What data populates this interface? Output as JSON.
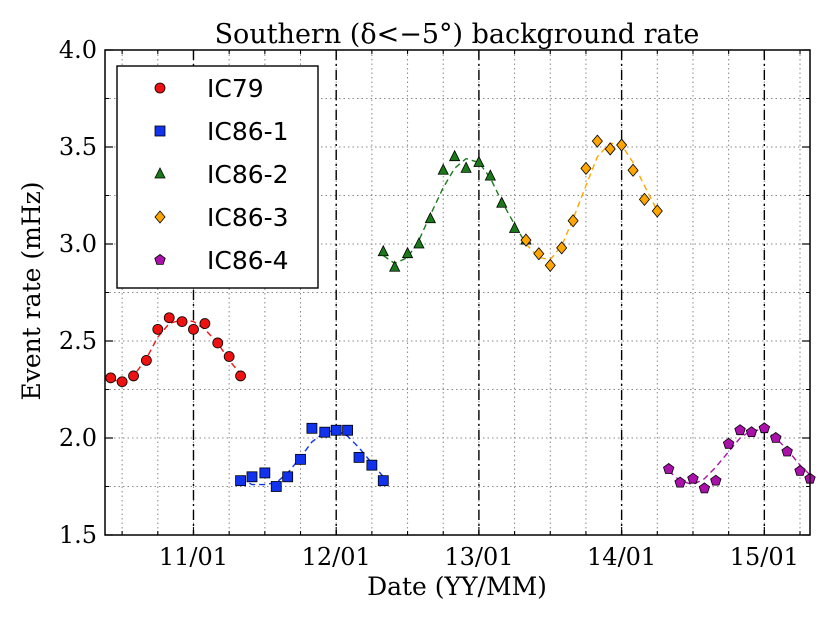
{
  "chart_data": {
    "type": "scatter",
    "title": "Southern (δ<−5°) background rate",
    "xlabel": "Date (YY/MM)",
    "ylabel": "Event rate (mHz)",
    "xlim": [
      2010.38,
      2015.32
    ],
    "ylim": [
      1.5,
      4.0
    ],
    "grid": true,
    "legend_position": "top-left",
    "x_tick_values": [
      2011.0,
      2012.0,
      2013.0,
      2014.0,
      2015.0
    ],
    "x_tick_labels": [
      "11/01",
      "12/01",
      "13/01",
      "14/01",
      "15/01"
    ],
    "y_tick_values": [
      1.5,
      2.0,
      2.5,
      3.0,
      3.5,
      4.0
    ],
    "y_tick_labels": [
      "1.5",
      "2.0",
      "2.5",
      "3.0",
      "3.5",
      "4.0"
    ],
    "season_boundaries": [
      2011.0,
      2012.0,
      2013.0,
      2014.0,
      2015.0
    ],
    "series": [
      {
        "name": "IC79",
        "color": "#ee1111",
        "marker": "circle",
        "points": [
          [
            2010.42,
            2.31
          ],
          [
            2010.5,
            2.29
          ],
          [
            2010.58,
            2.32
          ],
          [
            2010.67,
            2.4
          ],
          [
            2010.75,
            2.56
          ],
          [
            2010.83,
            2.62
          ],
          [
            2010.92,
            2.6
          ],
          [
            2011.0,
            2.56
          ],
          [
            2011.08,
            2.59
          ],
          [
            2011.17,
            2.49
          ],
          [
            2011.25,
            2.42
          ],
          [
            2011.33,
            2.32
          ]
        ],
        "fit": [
          [
            2010.42,
            2.3
          ],
          [
            2010.5,
            2.29
          ],
          [
            2010.58,
            2.32
          ],
          [
            2010.67,
            2.41
          ],
          [
            2010.75,
            2.52
          ],
          [
            2010.83,
            2.59
          ],
          [
            2010.92,
            2.61
          ],
          [
            2011.0,
            2.6
          ],
          [
            2011.08,
            2.56
          ],
          [
            2011.17,
            2.49
          ],
          [
            2011.25,
            2.4
          ],
          [
            2011.33,
            2.33
          ]
        ]
      },
      {
        "name": "IC86-1",
        "color": "#1133ee",
        "marker": "square",
        "points": [
          [
            2011.33,
            1.78
          ],
          [
            2011.41,
            1.8
          ],
          [
            2011.5,
            1.82
          ],
          [
            2011.58,
            1.75
          ],
          [
            2011.66,
            1.8
          ],
          [
            2011.75,
            1.89
          ],
          [
            2011.83,
            2.05
          ],
          [
            2011.92,
            2.03
          ],
          [
            2012.0,
            2.04
          ],
          [
            2012.08,
            2.04
          ],
          [
            2012.16,
            1.9
          ],
          [
            2012.25,
            1.86
          ],
          [
            2012.33,
            1.78
          ]
        ],
        "fit": [
          [
            2011.33,
            1.79
          ],
          [
            2011.41,
            1.76
          ],
          [
            2011.5,
            1.76
          ],
          [
            2011.58,
            1.77
          ],
          [
            2011.66,
            1.82
          ],
          [
            2011.75,
            1.9
          ],
          [
            2011.83,
            1.98
          ],
          [
            2011.92,
            2.03
          ],
          [
            2012.0,
            2.04
          ],
          [
            2012.08,
            2.01
          ],
          [
            2012.16,
            1.95
          ],
          [
            2012.25,
            1.87
          ],
          [
            2012.33,
            1.8
          ]
        ]
      },
      {
        "name": "IC86-2",
        "color": "#1a7a1a",
        "marker": "triangle",
        "points": [
          [
            2012.33,
            2.96
          ],
          [
            2012.41,
            2.88
          ],
          [
            2012.5,
            2.95
          ],
          [
            2012.58,
            3.0
          ],
          [
            2012.66,
            3.13
          ],
          [
            2012.75,
            3.38
          ],
          [
            2012.83,
            3.45
          ],
          [
            2012.91,
            3.39
          ],
          [
            2013.0,
            3.42
          ],
          [
            2013.08,
            3.35
          ],
          [
            2013.16,
            3.21
          ],
          [
            2013.25,
            3.08
          ],
          [
            2013.33,
            3.02
          ]
        ],
        "fit": [
          [
            2012.33,
            2.94
          ],
          [
            2012.41,
            2.9
          ],
          [
            2012.5,
            2.93
          ],
          [
            2012.58,
            3.02
          ],
          [
            2012.66,
            3.15
          ],
          [
            2012.75,
            3.29
          ],
          [
            2012.83,
            3.39
          ],
          [
            2012.91,
            3.44
          ],
          [
            2013.0,
            3.42
          ],
          [
            2013.08,
            3.34
          ],
          [
            2013.16,
            3.22
          ],
          [
            2013.25,
            3.1
          ],
          [
            2013.33,
            3.0
          ]
        ]
      },
      {
        "name": "IC86-3",
        "color": "#ffa500",
        "marker": "diamond",
        "points": [
          [
            2013.33,
            3.02
          ],
          [
            2013.42,
            2.95
          ],
          [
            2013.5,
            2.89
          ],
          [
            2013.58,
            2.98
          ],
          [
            2013.66,
            3.12
          ],
          [
            2013.75,
            3.39
          ],
          [
            2013.83,
            3.53
          ],
          [
            2013.92,
            3.49
          ],
          [
            2014.0,
            3.51
          ],
          [
            2014.08,
            3.38
          ],
          [
            2014.16,
            3.23
          ],
          [
            2014.25,
            3.17
          ]
        ],
        "fit": [
          [
            2013.33,
            3.0
          ],
          [
            2013.42,
            2.93
          ],
          [
            2013.5,
            2.92
          ],
          [
            2013.58,
            2.99
          ],
          [
            2013.66,
            3.13
          ],
          [
            2013.75,
            3.3
          ],
          [
            2013.83,
            3.45
          ],
          [
            2013.92,
            3.52
          ],
          [
            2014.0,
            3.51
          ],
          [
            2014.08,
            3.42
          ],
          [
            2014.16,
            3.3
          ],
          [
            2014.25,
            3.17
          ]
        ]
      },
      {
        "name": "IC86-4",
        "color": "#aa11aa",
        "marker": "pentagon",
        "points": [
          [
            2014.33,
            1.84
          ],
          [
            2014.41,
            1.77
          ],
          [
            2014.5,
            1.79
          ],
          [
            2014.58,
            1.74
          ],
          [
            2014.66,
            1.78
          ],
          [
            2014.75,
            1.97
          ],
          [
            2014.83,
            2.04
          ],
          [
            2014.91,
            2.03
          ],
          [
            2015.0,
            2.05
          ],
          [
            2015.08,
            2.0
          ],
          [
            2015.16,
            1.93
          ],
          [
            2015.25,
            1.83
          ],
          [
            2015.32,
            1.79
          ]
        ],
        "fit": [
          [
            2014.33,
            1.83
          ],
          [
            2014.41,
            1.78
          ],
          [
            2014.5,
            1.76
          ],
          [
            2014.58,
            1.79
          ],
          [
            2014.66,
            1.85
          ],
          [
            2014.75,
            1.93
          ],
          [
            2014.83,
            2.0
          ],
          [
            2014.91,
            2.04
          ],
          [
            2015.0,
            2.04
          ],
          [
            2015.08,
            2.0
          ],
          [
            2015.16,
            1.94
          ],
          [
            2015.25,
            1.86
          ],
          [
            2015.32,
            1.81
          ]
        ]
      }
    ]
  }
}
